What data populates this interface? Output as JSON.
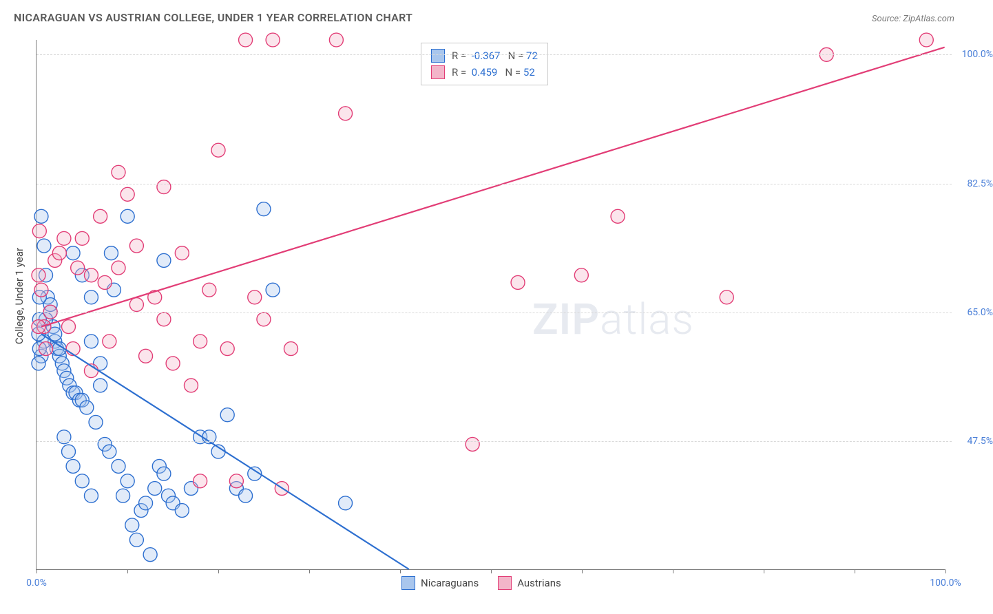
{
  "title": "NICARAGUAN VS AUSTRIAN COLLEGE, UNDER 1 YEAR CORRELATION CHART",
  "source": "Source: ZipAtlas.com",
  "ylabel": "College, Under 1 year",
  "watermark_a": "ZIP",
  "watermark_b": "atlas",
  "chart": {
    "type": "scatter_with_regression",
    "xlim": [
      0,
      100
    ],
    "ylim": [
      30,
      102
    ],
    "x_axis": {
      "tick_positions": [
        0,
        10,
        20,
        30,
        40,
        50,
        60,
        70,
        80,
        90,
        100
      ],
      "labels": {
        "0": "0.0%",
        "100": "100.0%"
      }
    },
    "y_axis": {
      "gridlines": [
        47.5,
        65.0,
        82.5,
        100.0
      ],
      "labels": [
        "47.5%",
        "65.0%",
        "82.5%",
        "100.0%"
      ]
    },
    "background_color": "#ffffff",
    "grid_color": "#d8d8d8",
    "marker_radius": 10,
    "marker_stroke_width": 1.4,
    "marker_fill_opacity": 0.35,
    "line_width": 2.2,
    "series": [
      {
        "name": "Nicaraguans",
        "color_stroke": "#2d6fd0",
        "color_fill": "#a9c6ed",
        "R": "-0.367",
        "N": "72",
        "regression": {
          "x1": 0.5,
          "y1": 62,
          "x2": 41,
          "y2": 30
        },
        "points": [
          [
            0.5,
            78
          ],
          [
            0.8,
            74
          ],
          [
            1.0,
            70
          ],
          [
            1.2,
            67
          ],
          [
            1.5,
            65
          ],
          [
            1.8,
            63
          ],
          [
            2.0,
            61
          ],
          [
            2.2,
            60
          ],
          [
            2.5,
            59
          ],
          [
            2.8,
            58
          ],
          [
            3.0,
            57
          ],
          [
            3.3,
            56
          ],
          [
            3.6,
            55
          ],
          [
            4.0,
            54
          ],
          [
            4.3,
            54
          ],
          [
            4.7,
            53
          ],
          [
            5.0,
            53
          ],
          [
            5.5,
            52
          ],
          [
            6.0,
            61
          ],
          [
            6.5,
            50
          ],
          [
            7.0,
            58
          ],
          [
            7.5,
            47
          ],
          [
            8.0,
            46
          ],
          [
            8.2,
            73
          ],
          [
            8.5,
            68
          ],
          [
            9.0,
            44
          ],
          [
            9.5,
            40
          ],
          [
            10,
            42
          ],
          [
            10,
            78
          ],
          [
            10.5,
            36
          ],
          [
            11,
            34
          ],
          [
            11.5,
            38
          ],
          [
            12,
            39
          ],
          [
            12.5,
            32
          ],
          [
            13,
            41
          ],
          [
            13.5,
            44
          ],
          [
            14,
            43
          ],
          [
            14.5,
            40
          ],
          [
            15,
            39
          ],
          [
            16,
            38
          ],
          [
            17,
            41
          ],
          [
            18,
            48
          ],
          [
            19,
            48
          ],
          [
            20,
            46
          ],
          [
            21,
            51
          ],
          [
            22,
            41
          ],
          [
            23,
            40
          ],
          [
            24,
            43
          ],
          [
            25,
            79
          ],
          [
            26,
            68
          ],
          [
            4,
            73
          ],
          [
            5,
            70
          ],
          [
            6,
            67
          ],
          [
            3,
            48
          ],
          [
            3.5,
            46
          ],
          [
            4,
            44
          ],
          [
            5,
            42
          ],
          [
            6,
            40
          ],
          [
            7,
            55
          ],
          [
            2,
            62
          ],
          [
            2.5,
            60
          ],
          [
            1,
            64
          ],
          [
            1.5,
            66
          ],
          [
            0.8,
            61
          ],
          [
            0.5,
            59
          ],
          [
            0.3,
            64
          ],
          [
            0.3,
            60
          ],
          [
            0.3,
            67
          ],
          [
            0.2,
            62
          ],
          [
            0.2,
            58
          ],
          [
            34,
            39
          ],
          [
            14,
            72
          ]
        ]
      },
      {
        "name": "Austrians",
        "color_stroke": "#e23d76",
        "color_fill": "#f3b5c9",
        "R": "0.459",
        "N": "52",
        "regression": {
          "x1": 0.5,
          "y1": 63,
          "x2": 100,
          "y2": 101
        },
        "points": [
          [
            0.3,
            76
          ],
          [
            0.5,
            68
          ],
          [
            0.8,
            63
          ],
          [
            1.0,
            60
          ],
          [
            1.5,
            65
          ],
          [
            2,
            72
          ],
          [
            2.5,
            73
          ],
          [
            3,
            75
          ],
          [
            3.5,
            63
          ],
          [
            4,
            60
          ],
          [
            4.5,
            71
          ],
          [
            5,
            75
          ],
          [
            6,
            57
          ],
          [
            7,
            78
          ],
          [
            7.5,
            69
          ],
          [
            8,
            61
          ],
          [
            9,
            71
          ],
          [
            10,
            81
          ],
          [
            11,
            74
          ],
          [
            12,
            59
          ],
          [
            13,
            67
          ],
          [
            14,
            64
          ],
          [
            15,
            58
          ],
          [
            16,
            73
          ],
          [
            17,
            55
          ],
          [
            18,
            61
          ],
          [
            19,
            68
          ],
          [
            20,
            87
          ],
          [
            21,
            60
          ],
          [
            22,
            42
          ],
          [
            23,
            102
          ],
          [
            24,
            67
          ],
          [
            25,
            64
          ],
          [
            26,
            102
          ],
          [
            27,
            41
          ],
          [
            28,
            60
          ],
          [
            33,
            102
          ],
          [
            34,
            92
          ],
          [
            48,
            47
          ],
          [
            53,
            69
          ],
          [
            60,
            70
          ],
          [
            64,
            78
          ],
          [
            76,
            67
          ],
          [
            87,
            100
          ],
          [
            98,
            102
          ],
          [
            14,
            82
          ],
          [
            6,
            70
          ],
          [
            0.2,
            63
          ],
          [
            0.2,
            70
          ],
          [
            9,
            84
          ],
          [
            11,
            66
          ],
          [
            18,
            42
          ]
        ]
      }
    ]
  },
  "legend_box": {
    "r_label": "R =",
    "n_label": "N ="
  },
  "legend_bottom": [
    "Nicaraguans",
    "Austrians"
  ]
}
